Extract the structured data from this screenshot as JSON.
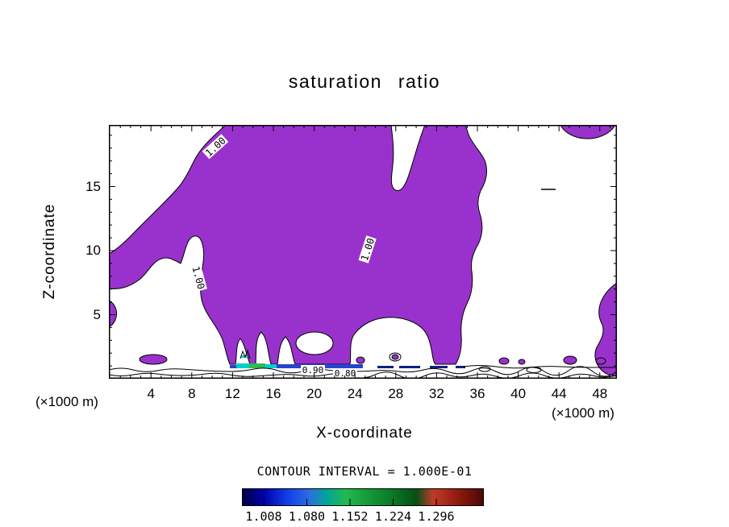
{
  "title": "saturation ratio",
  "axes": {
    "x_label": "X-coordinate",
    "y_label": "Z-coordinate",
    "x_unit_left": "(×1000 m)",
    "x_unit_right": "(×1000 m)"
  },
  "chart_data": {
    "type": "heatmap",
    "variant": "filled contour plot of a 2D vertical cross-section",
    "title": "saturation ratio",
    "xlabel": "X-coordinate",
    "ylabel": "Z-coordinate",
    "x_units": "(×1000 m)",
    "y_units": "(×1000 m)",
    "xlim": [
      0,
      50
    ],
    "ylim": [
      0,
      20
    ],
    "x_ticks": [
      4,
      8,
      12,
      16,
      20,
      24,
      28,
      32,
      36,
      40,
      44,
      48
    ],
    "y_ticks": [
      5,
      10,
      15
    ],
    "grid": false,
    "contour_interval": 0.1,
    "contour_interval_text": "CONTOUR INTERVAL = 1.000E-01",
    "contour_labels": {
      "l1": "1.00",
      "l2": "1.00",
      "l3": "1.00",
      "l4": "0.90",
      "l5": "0.80"
    },
    "description": "Large purple region marks saturation ratio >= 1.00 filling most of the domain aloft; 0.90 and 0.80 contour lines run along the surface layer; a thin near-surface strip around x=12-28 shows values up to ~1.3 (blue-green colors); small supersaturated patches near the surface and the right edge.",
    "colorbar_values": [
      "1.008",
      "1.080",
      "1.152",
      "1.224",
      "1.296"
    ],
    "colors": {
      "fill_main": "#9932CC",
      "contour_line": "#000000",
      "strip_cyan": "#00CFCF",
      "strip_green": "#2EBD4E",
      "strip_blue": "#2744CF",
      "strip_darkblue": "#101F7E"
    },
    "colorbar_stop_colors": [
      "#000046",
      "#0000A8",
      "#1240E8",
      "#2B6FE0",
      "#00A596",
      "#22BA4E",
      "#159638",
      "#0A7524",
      "#045014",
      "#C03A28",
      "#8B1A10",
      "#4A0604"
    ]
  }
}
